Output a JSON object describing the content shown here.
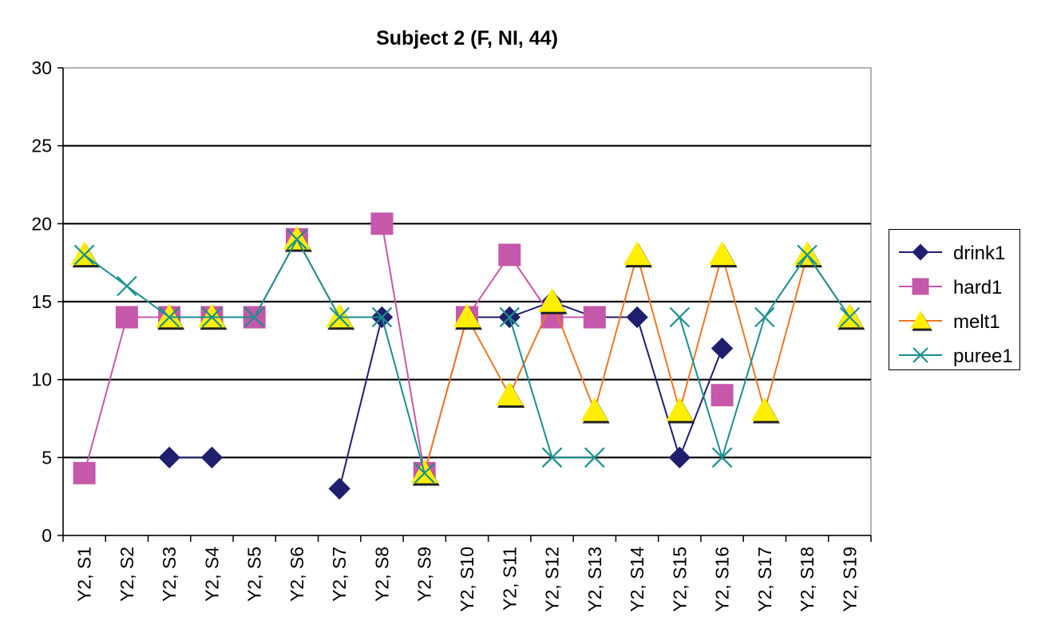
{
  "chart_data": {
    "type": "line",
    "title": "Subject 2 (F, NI, 44)",
    "xlabel": "",
    "ylabel": "",
    "ylim": [
      0,
      30
    ],
    "yticks": [
      "0",
      "5",
      "10",
      "15",
      "20",
      "25",
      "30"
    ],
    "categories": [
      "Y2, S1",
      "Y2, S2",
      "Y2, S3",
      "Y2, S4",
      "Y2, S5",
      "Y2, S6",
      "Y2, S7",
      "Y2, S8",
      "Y2, S9",
      "Y2, S10",
      "Y2, S11",
      "Y2, S12",
      "Y2, S13",
      "Y2, S14",
      "Y2, S15",
      "Y2, S16",
      "Y2, S17",
      "Y2, S18",
      "Y2, S19"
    ],
    "grid": "horizontal",
    "legend_position": "right",
    "series": [
      {
        "name": "drink1",
        "color": "#1f1f6e",
        "marker": "diamond",
        "values": [
          null,
          null,
          5,
          5,
          null,
          null,
          3,
          14,
          null,
          14,
          14,
          15,
          14,
          14,
          5,
          12,
          null,
          null,
          null
        ]
      },
      {
        "name": "hard1",
        "color": "#c558aa",
        "marker": "square",
        "values": [
          4,
          14,
          14,
          14,
          14,
          19,
          null,
          20,
          4,
          14,
          18,
          14,
          14,
          null,
          null,
          9,
          null,
          null,
          null
        ]
      },
      {
        "name": "melt1",
        "color": "#ee7722",
        "marker": "triangle",
        "values": [
          18,
          null,
          14,
          14,
          null,
          19,
          14,
          null,
          4,
          14,
          9,
          15,
          8,
          18,
          8,
          18,
          8,
          18,
          14
        ]
      },
      {
        "name": "puree1",
        "color": "#1a8f8f",
        "marker": "x",
        "values": [
          18,
          16,
          14,
          14,
          14,
          19,
          14,
          14,
          4,
          null,
          14,
          5,
          5,
          null,
          14,
          5,
          14,
          18,
          14
        ]
      }
    ]
  }
}
